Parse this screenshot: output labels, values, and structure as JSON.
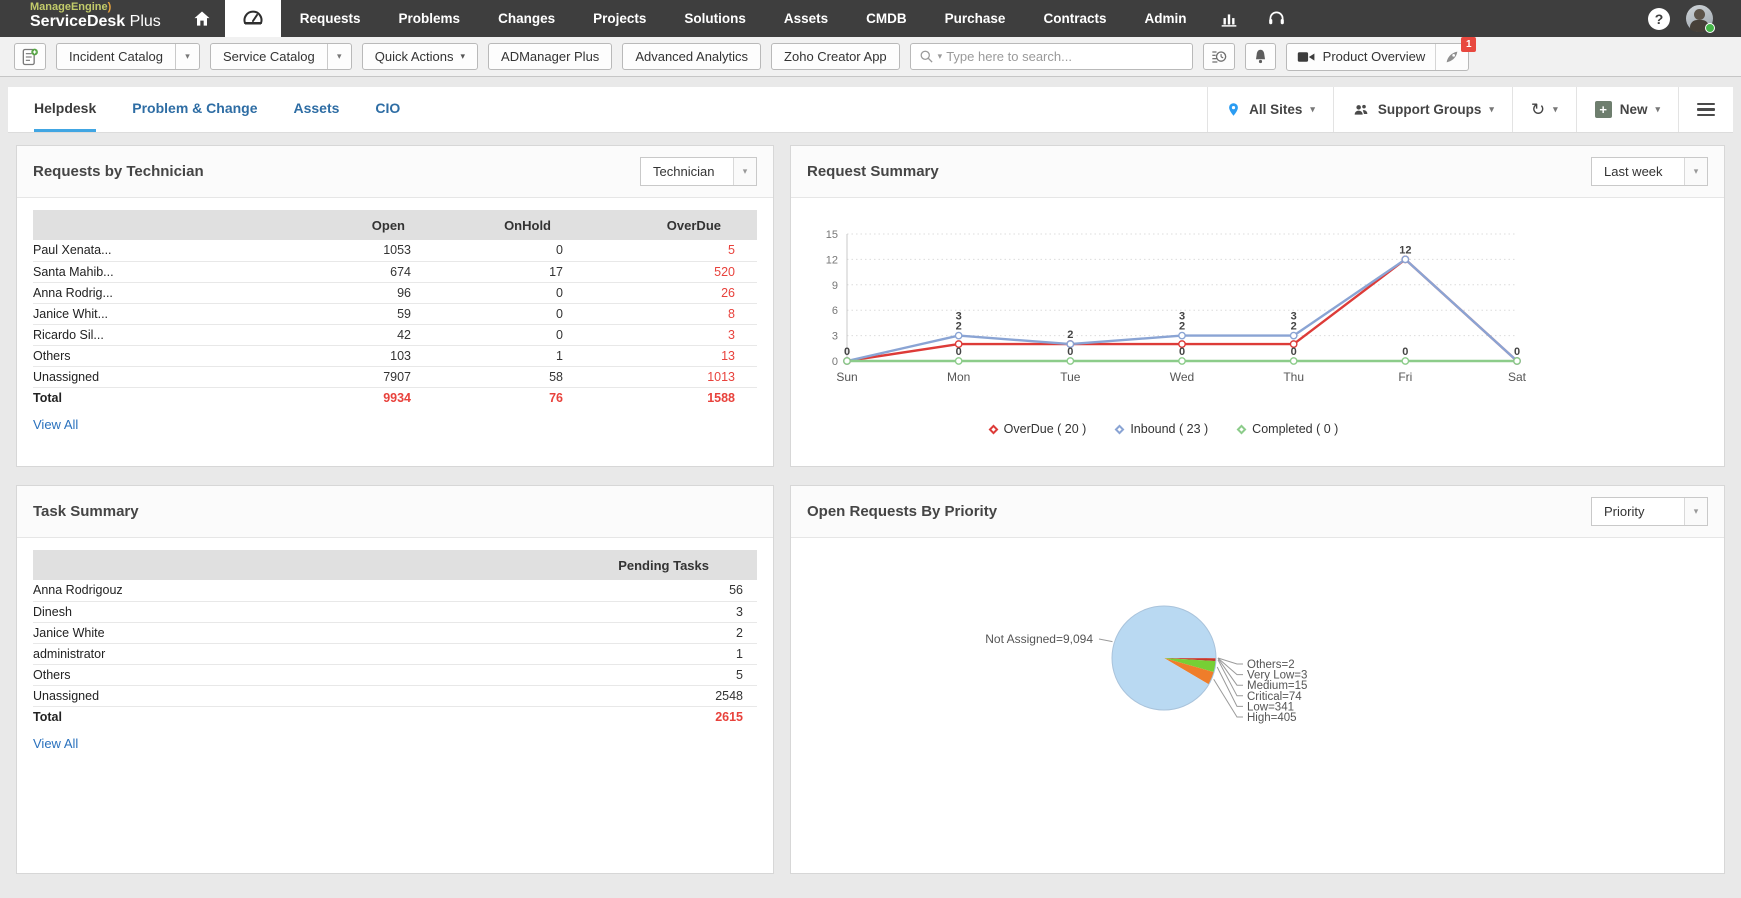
{
  "topnav": {
    "brand": "ManageEngine",
    "brand_paren": ")",
    "product_bold": "ServiceDesk",
    "product_light": "Plus",
    "items": [
      "Requests",
      "Problems",
      "Changes",
      "Projects",
      "Solutions",
      "Assets",
      "CMDB",
      "Purchase",
      "Contracts",
      "Admin"
    ],
    "help_glyph": "?"
  },
  "icons": {
    "caret_down": "▾",
    "refresh": "↻"
  },
  "toolbar": {
    "incident_catalog": "Incident Catalog",
    "service_catalog": "Service Catalog",
    "quick_actions": "Quick Actions",
    "admanager_plus": "ADManager Plus",
    "advanced_analytics": "Advanced Analytics",
    "zoho_creator_app": "Zoho Creator App",
    "search_placeholder": "Type here to search...",
    "product_overview": "Product Overview",
    "badge": "1"
  },
  "tabs": {
    "items": [
      {
        "label": "Helpdesk",
        "active": true
      },
      {
        "label": "Problem & Change",
        "active": false
      },
      {
        "label": "Assets",
        "active": false
      },
      {
        "label": "CIO",
        "active": false
      }
    ],
    "all_sites": "All Sites",
    "support_groups": "Support Groups",
    "new_label": "New"
  },
  "panels": {
    "requests_by_technician": {
      "title": "Requests by Technician",
      "filter": "Technician",
      "columns": [
        "Open",
        "OnHold",
        "OverDue"
      ],
      "rows": [
        {
          "name": "Paul Xenata...",
          "open": "1053",
          "onhold": "0",
          "overdue": "5"
        },
        {
          "name": "Santa Mahib...",
          "open": "674",
          "onhold": "17",
          "overdue": "520"
        },
        {
          "name": "Anna Rodrig...",
          "open": "96",
          "onhold": "0",
          "overdue": "26"
        },
        {
          "name": "Janice Whit...",
          "open": "59",
          "onhold": "0",
          "overdue": "8"
        },
        {
          "name": "Ricardo Sil...",
          "open": "42",
          "onhold": "0",
          "overdue": "3"
        },
        {
          "name": "Others",
          "open": "103",
          "onhold": "1",
          "overdue": "13"
        },
        {
          "name": "Unassigned",
          "open": "7907",
          "onhold": "58",
          "overdue": "1013"
        }
      ],
      "total": {
        "name": "Total",
        "open": "9934",
        "onhold": "76",
        "overdue": "1588"
      },
      "view_all": "View All"
    },
    "request_summary": {
      "title": "Request Summary",
      "filter": "Last week"
    },
    "task_summary": {
      "title": "Task Summary",
      "column": "Pending Tasks",
      "rows": [
        {
          "name": "Anna Rodrigouz",
          "value": "56"
        },
        {
          "name": "Dinesh",
          "value": "3"
        },
        {
          "name": "Janice White",
          "value": "2"
        },
        {
          "name": "administrator",
          "value": "1"
        },
        {
          "name": "Others",
          "value": "5"
        },
        {
          "name": "Unassigned",
          "value": "2548"
        }
      ],
      "total": {
        "name": "Total",
        "value": "2615"
      },
      "view_all": "View All"
    },
    "open_requests_by_priority": {
      "title": "Open Requests By Priority",
      "filter": "Priority"
    }
  },
  "colors": {
    "accent_blue": "#41a6e3",
    "link_blue": "#2a71bd",
    "alert_red": "#e8423c",
    "status_green": "#45b649"
  },
  "chart_data": [
    {
      "type": "line",
      "title": "Request Summary",
      "x": [
        "Sun",
        "Mon",
        "Tue",
        "Wed",
        "Thu",
        "Fri",
        "Sat"
      ],
      "ylim": [
        0,
        15
      ],
      "yticks": [
        0,
        3,
        6,
        9,
        12,
        15
      ],
      "grid": "dotted-horizontal",
      "legend_position": "bottom",
      "series": [
        {
          "name": "OverDue",
          "total": 20,
          "color": "#dd3b38",
          "values": [
            0,
            2,
            2,
            2,
            2,
            12,
            0
          ]
        },
        {
          "name": "Inbound",
          "total": 23,
          "color": "#8aa4d4",
          "values": [
            0,
            3,
            2,
            3,
            3,
            12,
            0
          ]
        },
        {
          "name": "Completed",
          "total": 0,
          "color": "#8ccc8a",
          "values": [
            0,
            0,
            0,
            0,
            0,
            0,
            0
          ]
        }
      ],
      "legend": [
        "OverDue ( 20 )",
        "Inbound ( 23 )",
        "Completed ( 0 )"
      ]
    },
    {
      "type": "pie",
      "title": "Open Requests By Priority",
      "slices": [
        {
          "label": "Others",
          "value": 2,
          "display": "Others=2",
          "color": "#a23bb3",
          "callout": "right"
        },
        {
          "label": "Very Low",
          "value": 3,
          "display": "Very Low=3",
          "color": "#8e44ad",
          "callout": "right"
        },
        {
          "label": "Medium",
          "value": 15,
          "display": "Medium=15",
          "color": "#e04b3f",
          "callout": "right"
        },
        {
          "label": "Critical",
          "value": 74,
          "display": "Critical=74",
          "color": "#c23a2e",
          "callout": "right"
        },
        {
          "label": "Low",
          "value": 341,
          "display": "Low=341",
          "color": "#76cf35",
          "callout": "right"
        },
        {
          "label": "High",
          "value": 405,
          "display": "High=405",
          "color": "#ef7d2a",
          "callout": "right"
        },
        {
          "label": "Not Assigned",
          "value": 9094,
          "display": "Not Assigned=9,094",
          "color": "#b9d9f2",
          "callout": "left"
        }
      ]
    }
  ]
}
